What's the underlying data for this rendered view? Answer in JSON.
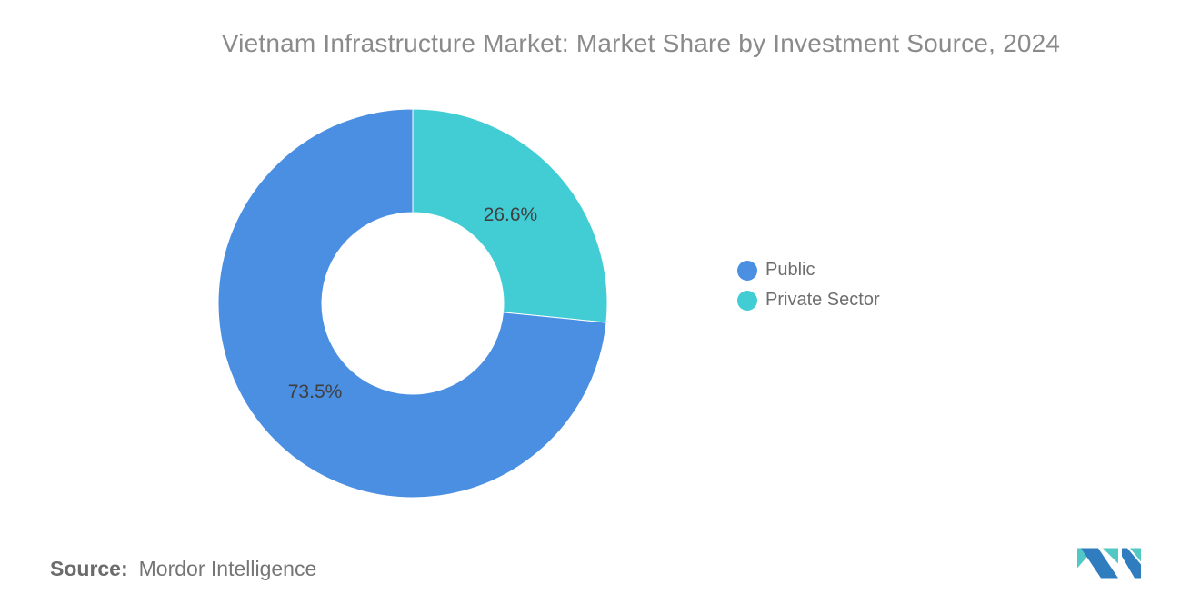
{
  "title": "Vietnam Infrastructure Market: Market Share by Investment Source, 2024",
  "chart_data": {
    "type": "pie",
    "subtype": "donut",
    "title": "Vietnam Infrastructure Market: Market Share by Investment Source, 2024",
    "unit": "%",
    "series": [
      {
        "name": "Public",
        "value": 73.5,
        "label": "73.5%",
        "color": "#4A8FE2"
      },
      {
        "name": "Private Sector",
        "value": 26.6,
        "label": "26.6%",
        "color": "#42CDD5"
      }
    ],
    "slice_order": [
      1,
      0
    ],
    "start_angle": "top",
    "direction": "clockwise",
    "inner_radius_ratio": 0.467,
    "legend_position": "right",
    "data_labels": "inside"
  },
  "legend": {
    "items": [
      {
        "label": "Public",
        "color": "#4A8FE2"
      },
      {
        "label": "Private Sector",
        "color": "#42CDD5"
      }
    ]
  },
  "footer": {
    "source_label": "Source:",
    "source_value": "Mordor Intelligence"
  },
  "logo": {
    "name": "mordor-intelligence-logo",
    "blue": "#2F7CBE",
    "teal": "#52C8C4"
  }
}
